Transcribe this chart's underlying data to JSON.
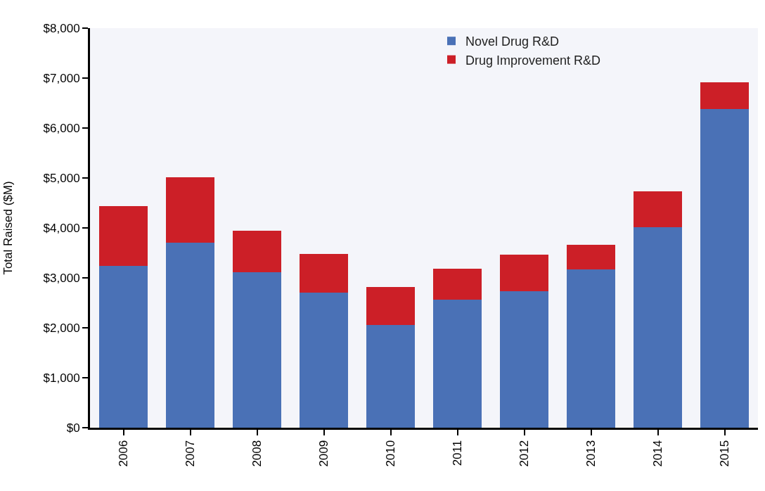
{
  "chart_data": {
    "type": "bar",
    "stacked": true,
    "ylabel": "Total Raised ($M)",
    "categories": [
      "2006",
      "2007",
      "2008",
      "2009",
      "2010",
      "2011",
      "2012",
      "2013",
      "2014",
      "2015"
    ],
    "series": [
      {
        "name": "Novel Drug R&D",
        "color": "#4a71b6",
        "values": [
          3240,
          3710,
          3110,
          2710,
          2060,
          2560,
          2730,
          3170,
          4020,
          6380
        ]
      },
      {
        "name": "Drug Improvement R&D",
        "color": "#cc1f27",
        "values": [
          1200,
          1310,
          830,
          770,
          750,
          630,
          740,
          490,
          710,
          540
        ]
      }
    ],
    "ylim": [
      0,
      8000
    ],
    "yticks": [
      {
        "value": 0,
        "label": "$0"
      },
      {
        "value": 1000,
        "label": "$1,000"
      },
      {
        "value": 2000,
        "label": "$2,000"
      },
      {
        "value": 3000,
        "label": "$3,000"
      },
      {
        "value": 4000,
        "label": "$4,000"
      },
      {
        "value": 5000,
        "label": "$5,000"
      },
      {
        "value": 6000,
        "label": "$6,000"
      },
      {
        "value": 7000,
        "label": "$7,000"
      },
      {
        "value": 8000,
        "label": "$8,000"
      }
    ],
    "grid": false,
    "legend": "top right"
  }
}
